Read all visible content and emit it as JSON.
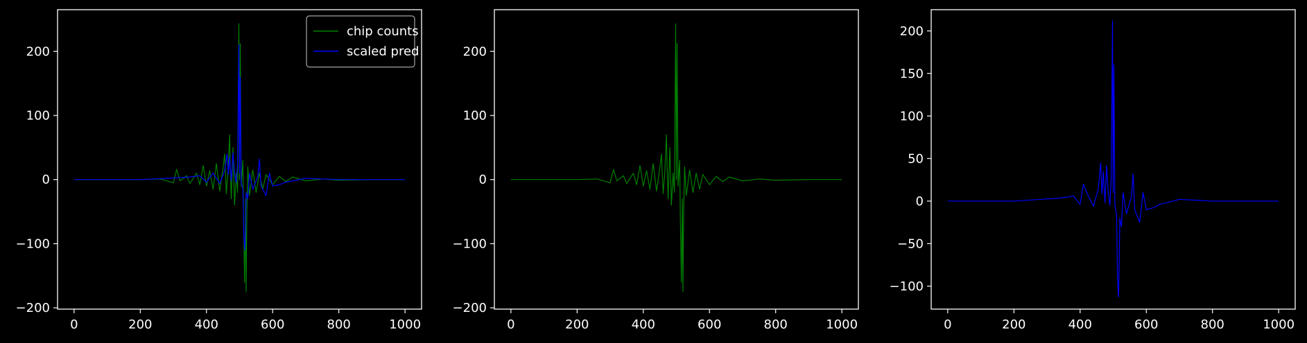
{
  "theme": {
    "background": "#000000",
    "foreground": "#ffffff"
  },
  "chart_data": [
    {
      "type": "line",
      "title": "",
      "xlabel": "",
      "ylabel": "",
      "xlim": [
        -50,
        1050
      ],
      "ylim": [
        -202,
        265
      ],
      "xticks": [
        0,
        200,
        400,
        600,
        800,
        1000
      ],
      "yticks": [
        -200,
        -100,
        0,
        100,
        200
      ],
      "grid": false,
      "legend": {
        "position": "top-right"
      },
      "series": [
        {
          "name": "chip counts",
          "color": "#008000",
          "points": [
            [
              0,
              0
            ],
            [
              100,
              0
            ],
            [
              200,
              0
            ],
            [
              260,
              1
            ],
            [
              300,
              -5
            ],
            [
              310,
              16
            ],
            [
              320,
              -2
            ],
            [
              340,
              6
            ],
            [
              350,
              -6
            ],
            [
              370,
              10
            ],
            [
              380,
              -8
            ],
            [
              390,
              22
            ],
            [
              400,
              -10
            ],
            [
              410,
              14
            ],
            [
              420,
              -15
            ],
            [
              430,
              25
            ],
            [
              440,
              -18
            ],
            [
              450,
              18
            ],
            [
              455,
              40
            ],
            [
              460,
              -22
            ],
            [
              465,
              12
            ],
            [
              470,
              70
            ],
            [
              472,
              20
            ],
            [
              475,
              -30
            ],
            [
              480,
              50
            ],
            [
              485,
              -40
            ],
            [
              490,
              10
            ],
            [
              494,
              -20
            ],
            [
              498,
              243
            ],
            [
              500,
              0
            ],
            [
              502,
              212
            ],
            [
              505,
              -10
            ],
            [
              510,
              30
            ],
            [
              512,
              -60
            ],
            [
              515,
              -160
            ],
            [
              518,
              -30
            ],
            [
              520,
              -175
            ],
            [
              522,
              -50
            ],
            [
              525,
              20
            ],
            [
              530,
              -25
            ],
            [
              540,
              15
            ],
            [
              550,
              -20
            ],
            [
              560,
              10
            ],
            [
              570,
              -15
            ],
            [
              580,
              8
            ],
            [
              600,
              -8
            ],
            [
              620,
              5
            ],
            [
              640,
              -3
            ],
            [
              660,
              4
            ],
            [
              700,
              -2
            ],
            [
              750,
              1
            ],
            [
              800,
              -1
            ],
            [
              900,
              0
            ],
            [
              1000,
              0
            ]
          ]
        },
        {
          "name": "scaled pred",
          "color": "#0000ff",
          "points": [
            [
              0,
              0
            ],
            [
              100,
              0
            ],
            [
              200,
              0
            ],
            [
              280,
              2
            ],
            [
              320,
              3
            ],
            [
              350,
              4
            ],
            [
              380,
              6
            ],
            [
              400,
              -4
            ],
            [
              420,
              10
            ],
            [
              440,
              -6
            ],
            [
              455,
              14
            ],
            [
              462,
              40
            ],
            [
              466,
              8
            ],
            [
              470,
              35
            ],
            [
              475,
              -2
            ],
            [
              480,
              42
            ],
            [
              485,
              10
            ],
            [
              490,
              -5
            ],
            [
              494,
              25
            ],
            [
              498,
              210
            ],
            [
              500,
              10
            ],
            [
              502,
              160
            ],
            [
              505,
              -5
            ],
            [
              510,
              -15
            ],
            [
              513,
              -90
            ],
            [
              516,
              -110
            ],
            [
              518,
              -75
            ],
            [
              520,
              -20
            ],
            [
              525,
              -30
            ],
            [
              530,
              10
            ],
            [
              540,
              -15
            ],
            [
              555,
              5
            ],
            [
              560,
              32
            ],
            [
              565,
              -10
            ],
            [
              580,
              -25
            ],
            [
              590,
              10
            ],
            [
              600,
              -10
            ],
            [
              620,
              -8
            ],
            [
              640,
              -4
            ],
            [
              660,
              -2
            ],
            [
              700,
              2
            ],
            [
              750,
              1
            ],
            [
              800,
              0
            ],
            [
              900,
              0
            ],
            [
              1000,
              0
            ]
          ]
        }
      ]
    },
    {
      "type": "line",
      "title": "",
      "xlabel": "",
      "ylabel": "",
      "xlim": [
        -50,
        1050
      ],
      "ylim": [
        -202,
        265
      ],
      "xticks": [
        0,
        200,
        400,
        600,
        800,
        1000
      ],
      "yticks": [
        -200,
        -100,
        0,
        100,
        200
      ],
      "grid": false,
      "series": [
        {
          "color": "#008000",
          "points": [
            [
              0,
              0
            ],
            [
              100,
              0
            ],
            [
              200,
              0
            ],
            [
              260,
              1
            ],
            [
              300,
              -5
            ],
            [
              310,
              16
            ],
            [
              320,
              -2
            ],
            [
              340,
              6
            ],
            [
              350,
              -6
            ],
            [
              370,
              10
            ],
            [
              380,
              -8
            ],
            [
              390,
              22
            ],
            [
              400,
              -10
            ],
            [
              410,
              14
            ],
            [
              420,
              -15
            ],
            [
              430,
              25
            ],
            [
              440,
              -18
            ],
            [
              450,
              18
            ],
            [
              455,
              40
            ],
            [
              460,
              -22
            ],
            [
              465,
              12
            ],
            [
              470,
              70
            ],
            [
              472,
              20
            ],
            [
              475,
              -30
            ],
            [
              480,
              50
            ],
            [
              485,
              -40
            ],
            [
              490,
              10
            ],
            [
              494,
              -20
            ],
            [
              498,
              243
            ],
            [
              500,
              0
            ],
            [
              502,
              212
            ],
            [
              505,
              -10
            ],
            [
              510,
              30
            ],
            [
              512,
              -60
            ],
            [
              515,
              -160
            ],
            [
              518,
              -30
            ],
            [
              520,
              -175
            ],
            [
              522,
              -50
            ],
            [
              525,
              20
            ],
            [
              530,
              -25
            ],
            [
              540,
              15
            ],
            [
              550,
              -20
            ],
            [
              560,
              10
            ],
            [
              570,
              -15
            ],
            [
              580,
              8
            ],
            [
              600,
              -8
            ],
            [
              620,
              5
            ],
            [
              640,
              -3
            ],
            [
              660,
              4
            ],
            [
              700,
              -2
            ],
            [
              750,
              1
            ],
            [
              800,
              -1
            ],
            [
              900,
              0
            ],
            [
              1000,
              0
            ]
          ]
        }
      ]
    },
    {
      "type": "line",
      "title": "",
      "xlabel": "",
      "ylabel": "",
      "xlim": [
        -50,
        1050
      ],
      "ylim": [
        -127,
        225
      ],
      "xticks": [
        0,
        200,
        400,
        600,
        800,
        1000
      ],
      "yticks": [
        -100,
        -50,
        0,
        50,
        100,
        150,
        200
      ],
      "grid": false,
      "series": [
        {
          "color": "#0000ff",
          "points": [
            [
              0,
              0
            ],
            [
              100,
              0
            ],
            [
              200,
              0
            ],
            [
              280,
              2
            ],
            [
              320,
              3
            ],
            [
              350,
              4
            ],
            [
              380,
              6
            ],
            [
              400,
              -4
            ],
            [
              410,
              20
            ],
            [
              420,
              10
            ],
            [
              440,
              -6
            ],
            [
              455,
              14
            ],
            [
              462,
              45
            ],
            [
              466,
              8
            ],
            [
              470,
              35
            ],
            [
              475,
              -2
            ],
            [
              480,
              42
            ],
            [
              485,
              10
            ],
            [
              490,
              -5
            ],
            [
              494,
              25
            ],
            [
              498,
              212
            ],
            [
              500,
              10
            ],
            [
              502,
              160
            ],
            [
              505,
              -5
            ],
            [
              510,
              -15
            ],
            [
              513,
              -90
            ],
            [
              516,
              -113
            ],
            [
              518,
              -75
            ],
            [
              520,
              -20
            ],
            [
              525,
              -30
            ],
            [
              530,
              10
            ],
            [
              540,
              -15
            ],
            [
              555,
              5
            ],
            [
              560,
              32
            ],
            [
              565,
              -10
            ],
            [
              580,
              -25
            ],
            [
              590,
              10
            ],
            [
              600,
              -10
            ],
            [
              620,
              -8
            ],
            [
              640,
              -4
            ],
            [
              660,
              -2
            ],
            [
              700,
              2
            ],
            [
              750,
              1
            ],
            [
              800,
              0
            ],
            [
              900,
              0
            ],
            [
              1000,
              0
            ]
          ]
        }
      ]
    }
  ]
}
